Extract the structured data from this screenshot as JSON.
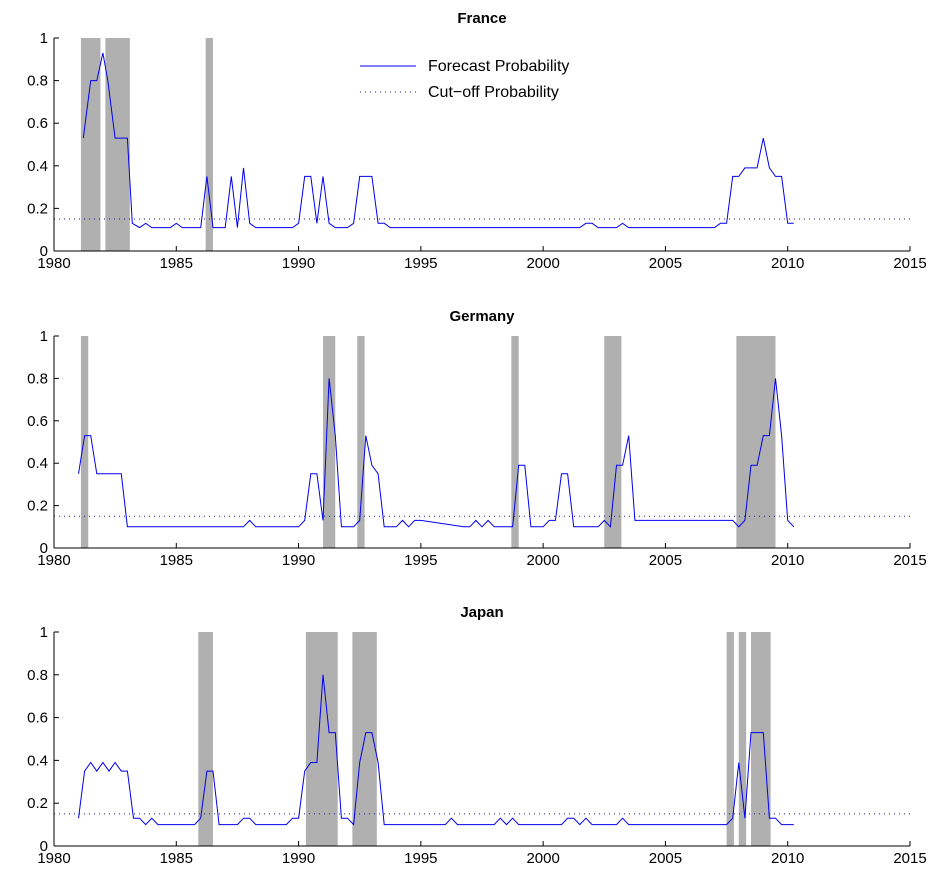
{
  "colors": {
    "series": "#0000ee",
    "cutoff": "#1a1a8c",
    "shade": "#b0b0b0",
    "axis": "#000000"
  },
  "legend": {
    "position": "top-center",
    "entries": [
      "Forecast Probability",
      "Cut−off Probability"
    ]
  },
  "chart_data": [
    {
      "type": "line",
      "title": "France",
      "xlim": [
        1980,
        2015
      ],
      "ylim": [
        0,
        1
      ],
      "xticks": [
        "1980",
        "1985",
        "1990",
        "1995",
        "2000",
        "2005",
        "2010",
        "2015"
      ],
      "yticks": [
        "0",
        "0.2",
        "0.4",
        "0.6",
        "0.8",
        "1"
      ],
      "grid": false,
      "cutoff": 0.15,
      "recessions": [
        [
          1981.1,
          1981.9
        ],
        [
          1982.1,
          1983.1
        ],
        [
          1986.2,
          1986.5
        ]
      ],
      "series": [
        {
          "name": "Forecast Probability",
          "x": [
            1981.2,
            1981.5,
            1981.75,
            1982.0,
            1982.2,
            1982.5,
            1982.75,
            1983.0,
            1983.2,
            1983.5,
            1983.75,
            1984.0,
            1984.25,
            1984.5,
            1984.75,
            1985.0,
            1985.25,
            1985.5,
            1985.75,
            1986.0,
            1986.25,
            1986.5,
            1986.75,
            1987.0,
            1987.25,
            1987.5,
            1987.75,
            1988.0,
            1988.25,
            1988.5,
            1988.75,
            1989.0,
            1989.25,
            1989.5,
            1989.75,
            1990.0,
            1990.25,
            1990.5,
            1990.75,
            1991.0,
            1991.25,
            1991.5,
            1991.75,
            1992.0,
            1992.25,
            1992.5,
            1992.75,
            1993.0,
            1993.25,
            1993.5,
            1993.75,
            1994.0,
            2001.5,
            2001.75,
            2002.0,
            2002.25,
            2003.0,
            2003.25,
            2003.5,
            2007.0,
            2007.25,
            2007.5,
            2007.75,
            2008.0,
            2008.25,
            2008.5,
            2008.75,
            2009.0,
            2009.25,
            2009.5,
            2009.75,
            2010.0,
            2010.25
          ],
          "values": [
            0.53,
            0.8,
            0.8,
            0.93,
            0.8,
            0.53,
            0.53,
            0.53,
            0.13,
            0.11,
            0.13,
            0.11,
            0.11,
            0.11,
            0.11,
            0.13,
            0.11,
            0.11,
            0.11,
            0.11,
            0.35,
            0.11,
            0.11,
            0.11,
            0.35,
            0.11,
            0.39,
            0.13,
            0.11,
            0.11,
            0.11,
            0.11,
            0.11,
            0.11,
            0.11,
            0.13,
            0.35,
            0.35,
            0.13,
            0.35,
            0.13,
            0.11,
            0.11,
            0.11,
            0.13,
            0.35,
            0.35,
            0.35,
            0.13,
            0.13,
            0.11,
            0.11,
            0.11,
            0.13,
            0.13,
            0.11,
            0.11,
            0.13,
            0.11,
            0.11,
            0.13,
            0.13,
            0.35,
            0.35,
            0.39,
            0.39,
            0.39,
            0.53,
            0.39,
            0.35,
            0.35,
            0.13,
            0.13
          ]
        }
      ]
    },
    {
      "type": "line",
      "title": "Germany",
      "xlim": [
        1980,
        2015
      ],
      "ylim": [
        0,
        1
      ],
      "xticks": [
        "1980",
        "1985",
        "1990",
        "1995",
        "2000",
        "2005",
        "2010",
        "2015"
      ],
      "yticks": [
        "0",
        "0.2",
        "0.4",
        "0.6",
        "0.8",
        "1"
      ],
      "grid": false,
      "cutoff": 0.15,
      "recessions": [
        [
          1981.1,
          1981.4
        ],
        [
          1991.0,
          1991.5
        ],
        [
          1992.4,
          1992.7
        ],
        [
          1998.7,
          1999.0
        ],
        [
          2002.5,
          2003.2
        ],
        [
          2007.9,
          2009.5
        ]
      ],
      "series": [
        {
          "name": "Forecast Probability",
          "x": [
            1981.0,
            1981.25,
            1981.5,
            1981.75,
            1982.0,
            1982.25,
            1982.5,
            1982.75,
            1983.0,
            1987.75,
            1988.0,
            1988.25,
            1990.0,
            1990.25,
            1990.5,
            1990.75,
            1991.0,
            1991.25,
            1991.5,
            1991.75,
            1992.0,
            1992.25,
            1992.5,
            1992.75,
            1993.0,
            1993.25,
            1993.5,
            1993.75,
            1994.0,
            1994.25,
            1994.5,
            1994.75,
            1995.0,
            1996.75,
            1997.0,
            1997.25,
            1997.5,
            1997.75,
            1998.0,
            1998.5,
            1998.75,
            1999.0,
            1999.25,
            1999.5,
            1999.75,
            2000.0,
            2000.25,
            2000.5,
            2000.75,
            2001.0,
            2001.25,
            2001.75,
            2002.0,
            2002.25,
            2002.5,
            2002.75,
            2003.0,
            2003.25,
            2003.5,
            2003.75,
            2007.75,
            2008.0,
            2008.25,
            2008.5,
            2008.75,
            2009.0,
            2009.25,
            2009.5,
            2009.75,
            2010.0,
            2010.25
          ],
          "values": [
            0.35,
            0.53,
            0.53,
            0.35,
            0.35,
            0.35,
            0.35,
            0.35,
            0.1,
            0.1,
            0.13,
            0.1,
            0.1,
            0.13,
            0.35,
            0.35,
            0.13,
            0.8,
            0.53,
            0.1,
            0.1,
            0.1,
            0.13,
            0.53,
            0.39,
            0.35,
            0.1,
            0.1,
            0.1,
            0.13,
            0.1,
            0.13,
            0.13,
            0.1,
            0.1,
            0.13,
            0.1,
            0.13,
            0.1,
            0.1,
            0.1,
            0.39,
            0.39,
            0.1,
            0.1,
            0.1,
            0.13,
            0.13,
            0.35,
            0.35,
            0.1,
            0.1,
            0.1,
            0.1,
            0.13,
            0.1,
            0.39,
            0.39,
            0.53,
            0.13,
            0.13,
            0.1,
            0.13,
            0.39,
            0.39,
            0.53,
            0.53,
            0.8,
            0.53,
            0.13,
            0.1
          ]
        }
      ]
    },
    {
      "type": "line",
      "title": "Japan",
      "xlim": [
        1980,
        2015
      ],
      "ylim": [
        0,
        1
      ],
      "xticks": [
        "1980",
        "1985",
        "1990",
        "1995",
        "2000",
        "2005",
        "2010",
        "2015"
      ],
      "yticks": [
        "0",
        "0.2",
        "0.4",
        "0.6",
        "0.8",
        "1"
      ],
      "grid": false,
      "cutoff": 0.15,
      "recessions": [
        [
          1985.9,
          1986.5
        ],
        [
          1990.3,
          1991.6
        ],
        [
          1992.2,
          1993.2
        ],
        [
          2007.5,
          2007.8
        ],
        [
          2008.0,
          2008.3
        ],
        [
          2008.5,
          2009.3
        ]
      ],
      "series": [
        {
          "name": "Forecast Probability",
          "x": [
            1981.0,
            1981.25,
            1981.5,
            1981.75,
            1982.0,
            1982.25,
            1982.5,
            1982.75,
            1983.0,
            1983.25,
            1983.5,
            1983.75,
            1984.0,
            1984.25,
            1984.5,
            1985.75,
            1986.0,
            1986.25,
            1986.5,
            1986.75,
            1987.5,
            1987.75,
            1988.0,
            1988.25,
            1988.5,
            1989.5,
            1989.75,
            1990.0,
            1990.25,
            1990.5,
            1990.75,
            1991.0,
            1991.25,
            1991.5,
            1991.75,
            1992.0,
            1992.25,
            1992.5,
            1992.75,
            1993.0,
            1993.25,
            1993.5,
            1996.0,
            1996.25,
            1996.5,
            1998.0,
            1998.25,
            1998.5,
            1998.75,
            1999.0,
            2000.75,
            2001.0,
            2001.25,
            2001.5,
            2001.75,
            2002.0,
            2003.0,
            2003.25,
            2003.5,
            2007.5,
            2007.75,
            2008.0,
            2008.25,
            2008.5,
            2008.75,
            2009.0,
            2009.25,
            2009.5,
            2009.75,
            2010.0,
            2010.25
          ],
          "values": [
            0.13,
            0.35,
            0.39,
            0.35,
            0.39,
            0.35,
            0.39,
            0.35,
            0.35,
            0.13,
            0.13,
            0.1,
            0.13,
            0.1,
            0.1,
            0.1,
            0.13,
            0.35,
            0.35,
            0.1,
            0.1,
            0.13,
            0.13,
            0.1,
            0.1,
            0.1,
            0.13,
            0.13,
            0.35,
            0.39,
            0.39,
            0.8,
            0.53,
            0.53,
            0.13,
            0.13,
            0.1,
            0.39,
            0.53,
            0.53,
            0.39,
            0.1,
            0.1,
            0.13,
            0.1,
            0.1,
            0.13,
            0.1,
            0.13,
            0.1,
            0.1,
            0.13,
            0.13,
            0.1,
            0.13,
            0.1,
            0.1,
            0.13,
            0.1,
            0.1,
            0.13,
            0.39,
            0.13,
            0.53,
            0.53,
            0.53,
            0.13,
            0.13,
            0.1,
            0.1,
            0.1
          ]
        }
      ]
    }
  ]
}
